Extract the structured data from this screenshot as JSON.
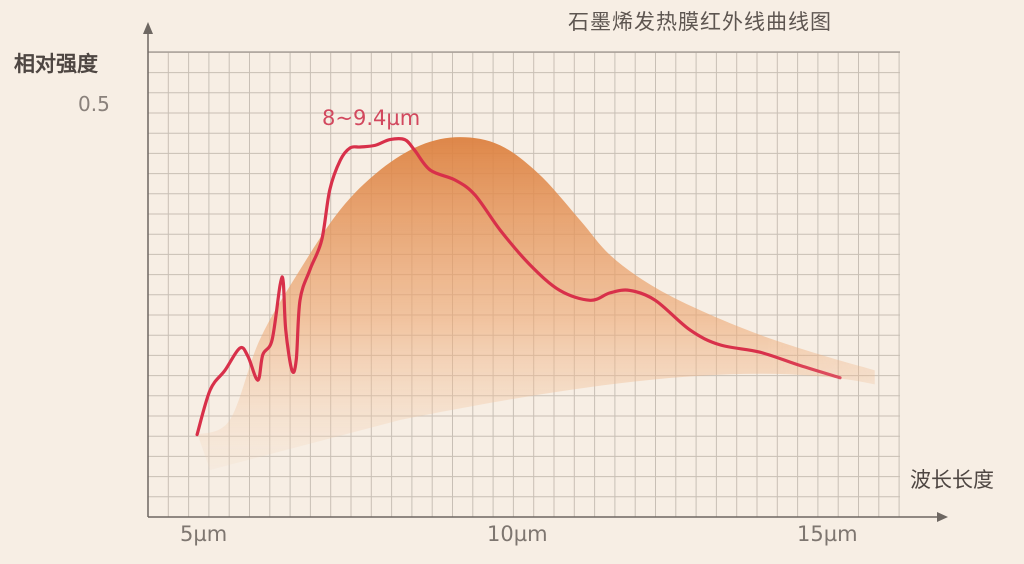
{
  "chart_data": {
    "type": "line",
    "title": "石墨烯发热膜红外线曲线图",
    "xlabel": "波长长度",
    "ylabel": "相对强度",
    "x_ticks": [
      "5µm",
      "10µm",
      "15µm"
    ],
    "y_ticks": [
      "0.5"
    ],
    "xlim": [
      3.5,
      16.8
    ],
    "ylim": [
      0,
      0.56
    ],
    "grid": true,
    "annotation": "8~9.4µm",
    "colors": {
      "line": "#d8304a",
      "area": "#e0894a",
      "grid": "#c8bfb5",
      "axis": "#6e6762"
    },
    "series": [
      {
        "type": "line",
        "x": [
          4.84,
          5.05,
          5.29,
          5.53,
          5.66,
          5.82,
          5.9,
          6.05,
          6.18,
          6.23,
          6.27,
          6.37,
          6.44,
          6.5,
          6.66,
          6.85,
          6.98,
          7.15,
          7.31,
          7.47,
          7.71,
          7.95,
          8.19,
          8.35,
          8.6,
          9.0,
          9.32,
          9.73,
          10.21,
          10.69,
          11.18,
          11.5,
          11.82,
          12.23,
          12.79,
          13.27,
          13.92,
          14.56,
          15.21
        ],
        "y": [
          0.1,
          0.154,
          0.178,
          0.205,
          0.195,
          0.166,
          0.197,
          0.215,
          0.282,
          0.285,
          0.227,
          0.178,
          0.191,
          0.263,
          0.3,
          0.336,
          0.397,
          0.433,
          0.448,
          0.449,
          0.451,
          0.458,
          0.458,
          0.445,
          0.421,
          0.409,
          0.391,
          0.348,
          0.306,
          0.275,
          0.263,
          0.272,
          0.275,
          0.263,
          0.227,
          0.209,
          0.2,
          0.184,
          0.169
        ]
      },
      {
        "type": "area",
        "x": [
          5.37,
          5.85,
          6.5,
          7.15,
          7.79,
          8.44,
          9.08,
          9.73,
          10.37,
          11.02,
          11.5,
          12.15,
          12.95,
          13.92,
          14.89,
          15.77
        ],
        "y": [
          0.118,
          0.215,
          0.3,
          0.373,
          0.421,
          0.451,
          0.461,
          0.451,
          0.415,
          0.36,
          0.318,
          0.282,
          0.251,
          0.221,
          0.197,
          0.178
        ]
      }
    ]
  }
}
